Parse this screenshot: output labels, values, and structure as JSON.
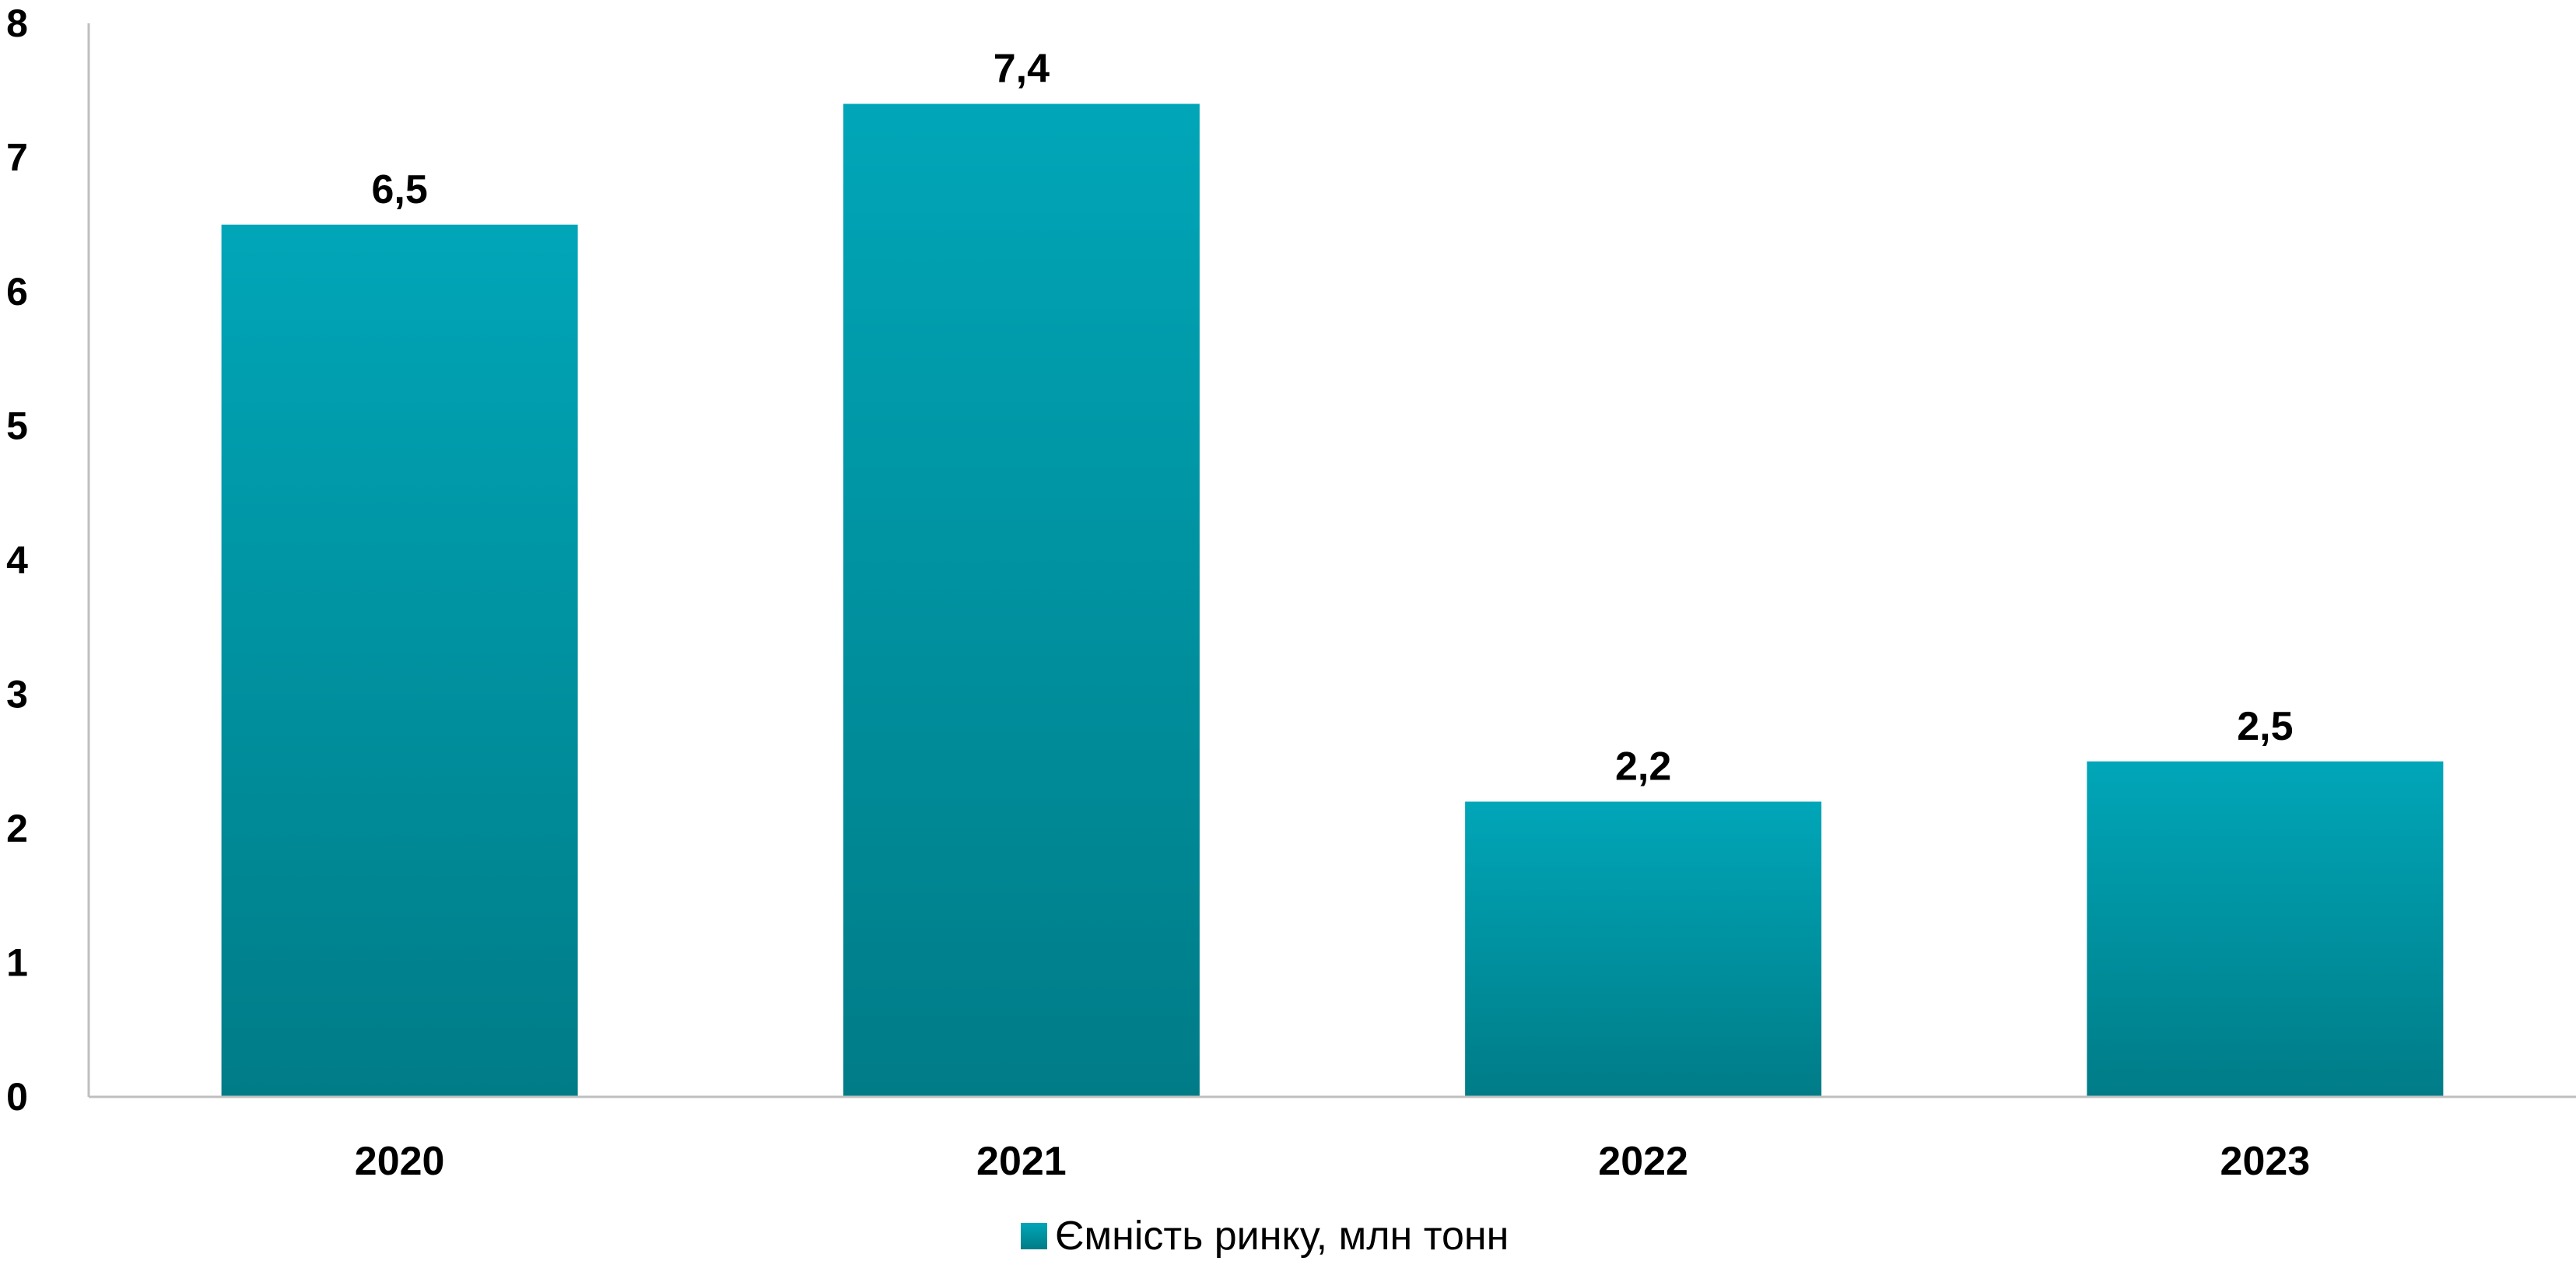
{
  "chart_data": {
    "type": "bar",
    "categories": [
      "2020",
      "2021",
      "2022",
      "2023"
    ],
    "series": [
      {
        "name": "Ємність ринку, млн тонн",
        "values": [
          6.5,
          7.4,
          2.2,
          2.5
        ],
        "labels": [
          "6,5",
          "7,4",
          "2,2",
          "2,5"
        ]
      }
    ],
    "ylim": [
      0,
      8
    ],
    "yticks": [
      "0",
      "1",
      "2",
      "3",
      "4",
      "5",
      "6",
      "7",
      "8"
    ],
    "grid": false,
    "legend_position": "bottom-center",
    "colors": {
      "bar_top": "#00A6B8",
      "bar_bottom": "#007C87",
      "axis": "#BFBFBF"
    }
  }
}
